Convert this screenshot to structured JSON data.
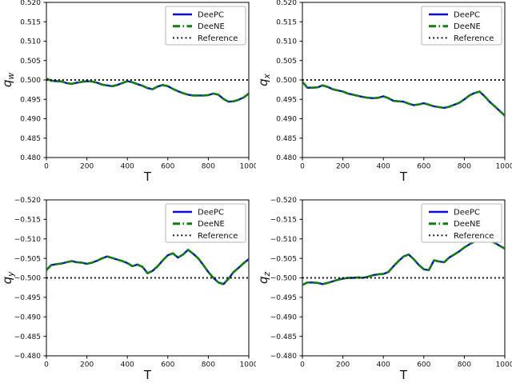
{
  "figure": {
    "background": "#ffffff",
    "spine_color": "#000000",
    "legend_border_color": "#b5b5b5"
  },
  "chart_data": [
    {
      "id": "qw",
      "type": "line",
      "xlabel": "T",
      "ylabel_base": "q",
      "ylabel_sub": "w",
      "xlim": [
        0,
        1000
      ],
      "xticks": [
        0,
        200,
        400,
        600,
        800,
        1000
      ],
      "xtick_labels": [
        "0",
        "200",
        "400",
        "600",
        "800",
        "1000"
      ],
      "ylim_top": 0.52,
      "ylim_bottom": 0.48,
      "yticks": [
        0.52,
        0.515,
        0.51,
        0.505,
        0.5,
        0.495,
        0.49,
        0.485,
        0.48
      ],
      "ytick_labels": [
        "0.520",
        "0.515",
        "0.510",
        "0.505",
        "0.500",
        "0.495",
        "0.490",
        "0.485",
        "0.480"
      ],
      "legend_position": "upper right",
      "x": [
        0,
        25,
        50,
        75,
        100,
        125,
        150,
        175,
        200,
        225,
        250,
        275,
        300,
        325,
        350,
        375,
        400,
        425,
        450,
        475,
        500,
        525,
        550,
        575,
        600,
        625,
        650,
        675,
        700,
        725,
        750,
        775,
        800,
        825,
        850,
        875,
        900,
        925,
        950,
        975,
        1000
      ],
      "series": [
        {
          "name": "DeePC",
          "color": "#0b0be0",
          "style": "solid",
          "values": [
            0.5003,
            0.4998,
            0.4997,
            0.4996,
            0.4992,
            0.499,
            0.4993,
            0.4995,
            0.4997,
            0.4996,
            0.4993,
            0.4988,
            0.4986,
            0.4984,
            0.4987,
            0.4992,
            0.4997,
            0.4994,
            0.4989,
            0.4985,
            0.4979,
            0.4976,
            0.4983,
            0.4987,
            0.4984,
            0.4977,
            0.4971,
            0.4966,
            0.4962,
            0.496,
            0.496,
            0.496,
            0.4961,
            0.4965,
            0.4962,
            0.4951,
            0.4944,
            0.4945,
            0.4949,
            0.4955,
            0.4965
          ]
        },
        {
          "name": "DeeNE",
          "color": "#0e7f0e",
          "style": "dashed",
          "values": [
            0.5003,
            0.4998,
            0.4997,
            0.4996,
            0.4992,
            0.499,
            0.4993,
            0.4995,
            0.4997,
            0.4996,
            0.4993,
            0.4988,
            0.4986,
            0.4984,
            0.4987,
            0.4992,
            0.4997,
            0.4994,
            0.4989,
            0.4985,
            0.4979,
            0.4976,
            0.4983,
            0.4987,
            0.4984,
            0.4977,
            0.4971,
            0.4966,
            0.4962,
            0.496,
            0.496,
            0.496,
            0.4961,
            0.4965,
            0.4962,
            0.4951,
            0.4944,
            0.4945,
            0.4949,
            0.4955,
            0.4965
          ]
        },
        {
          "name": "Reference",
          "color": "#000000",
          "style": "dotted",
          "constant": 0.5
        }
      ]
    },
    {
      "id": "qx",
      "type": "line",
      "xlabel": "T",
      "ylabel_base": "q",
      "ylabel_sub": "x",
      "xlim": [
        0,
        1000
      ],
      "xticks": [
        0,
        200,
        400,
        600,
        800,
        1000
      ],
      "xtick_labels": [
        "0",
        "200",
        "400",
        "600",
        "800",
        "1000"
      ],
      "ylim_top": 0.52,
      "ylim_bottom": 0.48,
      "yticks": [
        0.52,
        0.515,
        0.51,
        0.505,
        0.5,
        0.495,
        0.49,
        0.485,
        0.48
      ],
      "ytick_labels": [
        "0.520",
        "0.515",
        "0.510",
        "0.505",
        "0.500",
        "0.495",
        "0.490",
        "0.485",
        "0.480"
      ],
      "legend_position": "upper right",
      "x": [
        0,
        25,
        50,
        75,
        100,
        125,
        150,
        175,
        200,
        225,
        250,
        275,
        300,
        325,
        350,
        375,
        400,
        425,
        450,
        475,
        500,
        525,
        550,
        575,
        600,
        625,
        650,
        675,
        700,
        725,
        750,
        775,
        800,
        825,
        850,
        875,
        900,
        925,
        950,
        975,
        1000
      ],
      "series": [
        {
          "name": "DeePC",
          "color": "#0b0be0",
          "style": "solid",
          "values": [
            0.4995,
            0.498,
            0.498,
            0.4981,
            0.4986,
            0.4982,
            0.4976,
            0.4973,
            0.497,
            0.4965,
            0.4962,
            0.4959,
            0.4956,
            0.4954,
            0.4953,
            0.4954,
            0.4958,
            0.4953,
            0.4946,
            0.4945,
            0.4944,
            0.4939,
            0.4935,
            0.4937,
            0.494,
            0.4936,
            0.4932,
            0.493,
            0.4928,
            0.4931,
            0.4936,
            0.4941,
            0.495,
            0.496,
            0.4966,
            0.497,
            0.4958,
            0.4944,
            0.4932,
            0.492,
            0.4908
          ]
        },
        {
          "name": "DeeNE",
          "color": "#0e7f0e",
          "style": "dashed",
          "values": [
            0.4995,
            0.498,
            0.498,
            0.4981,
            0.4986,
            0.4982,
            0.4976,
            0.4973,
            0.497,
            0.4965,
            0.4962,
            0.4959,
            0.4956,
            0.4954,
            0.4953,
            0.4954,
            0.4958,
            0.4953,
            0.4946,
            0.4945,
            0.4944,
            0.4939,
            0.4935,
            0.4937,
            0.494,
            0.4936,
            0.4932,
            0.493,
            0.4928,
            0.4931,
            0.4936,
            0.4941,
            0.495,
            0.496,
            0.4966,
            0.497,
            0.4958,
            0.4944,
            0.4932,
            0.492,
            0.4908
          ]
        },
        {
          "name": "Reference",
          "color": "#000000",
          "style": "dotted",
          "constant": 0.5
        }
      ]
    },
    {
      "id": "qy",
      "type": "line",
      "xlabel": "T",
      "ylabel_base": "q",
      "ylabel_sub": "y",
      "xlim": [
        0,
        1000
      ],
      "xticks": [
        0,
        200,
        400,
        600,
        800,
        1000
      ],
      "xtick_labels": [
        "0",
        "200",
        "400",
        "600",
        "800",
        "1000"
      ],
      "ylim_top": -0.52,
      "ylim_bottom": -0.48,
      "yticks": [
        -0.52,
        -0.515,
        -0.51,
        -0.505,
        -0.5,
        -0.495,
        -0.49,
        -0.485,
        -0.48
      ],
      "ytick_labels": [
        "−0.520",
        "−0.515",
        "−0.510",
        "−0.505",
        "−0.500",
        "−0.495",
        "−0.490",
        "−0.485",
        "−0.480"
      ],
      "legend_position": "upper right",
      "x": [
        0,
        25,
        50,
        75,
        100,
        125,
        150,
        175,
        200,
        225,
        250,
        275,
        300,
        325,
        350,
        375,
        400,
        425,
        450,
        475,
        500,
        525,
        550,
        575,
        600,
        625,
        650,
        675,
        700,
        725,
        750,
        775,
        800,
        825,
        850,
        875,
        900,
        925,
        950,
        975,
        1000
      ],
      "series": [
        {
          "name": "DeePC",
          "color": "#0b0be0",
          "style": "solid",
          "values": [
            -0.502,
            -0.5033,
            -0.5035,
            -0.5037,
            -0.504,
            -0.5043,
            -0.504,
            -0.5039,
            -0.5036,
            -0.5039,
            -0.5044,
            -0.505,
            -0.5055,
            -0.5051,
            -0.5047,
            -0.5043,
            -0.5038,
            -0.503,
            -0.5034,
            -0.5028,
            -0.5012,
            -0.5018,
            -0.503,
            -0.5045,
            -0.5058,
            -0.5063,
            -0.5052,
            -0.506,
            -0.5072,
            -0.5062,
            -0.505,
            -0.5033,
            -0.5015,
            -0.5,
            -0.4988,
            -0.4984,
            -0.4998,
            -0.5015,
            -0.5026,
            -0.5038,
            -0.5048
          ]
        },
        {
          "name": "DeeNE",
          "color": "#0e7f0e",
          "style": "dashed",
          "values": [
            -0.502,
            -0.5033,
            -0.5035,
            -0.5037,
            -0.504,
            -0.5043,
            -0.504,
            -0.5039,
            -0.5036,
            -0.5039,
            -0.5044,
            -0.505,
            -0.5055,
            -0.5051,
            -0.5047,
            -0.5043,
            -0.5038,
            -0.503,
            -0.5034,
            -0.5028,
            -0.5012,
            -0.5018,
            -0.503,
            -0.5045,
            -0.5058,
            -0.5063,
            -0.5052,
            -0.506,
            -0.5072,
            -0.5062,
            -0.505,
            -0.5033,
            -0.5015,
            -0.5,
            -0.4988,
            -0.4984,
            -0.4998,
            -0.5015,
            -0.5026,
            -0.5038,
            -0.5048
          ]
        },
        {
          "name": "Reference",
          "color": "#000000",
          "style": "dotted",
          "constant": -0.5
        }
      ]
    },
    {
      "id": "qz",
      "type": "line",
      "xlabel": "T",
      "ylabel_base": "q",
      "ylabel_sub": "z",
      "xlim": [
        0,
        1000
      ],
      "xticks": [
        0,
        200,
        400,
        600,
        800,
        1000
      ],
      "xtick_labels": [
        "0",
        "200",
        "400",
        "600",
        "800",
        "1000"
      ],
      "ylim_top": -0.52,
      "ylim_bottom": -0.48,
      "yticks": [
        -0.52,
        -0.515,
        -0.51,
        -0.505,
        -0.5,
        -0.495,
        -0.49,
        -0.485,
        -0.48
      ],
      "ytick_labels": [
        "−0.520",
        "−0.515",
        "−0.510",
        "−0.505",
        "−0.500",
        "−0.495",
        "−0.490",
        "−0.485",
        "−0.480"
      ],
      "legend_position": "upper right",
      "x": [
        0,
        25,
        50,
        75,
        100,
        125,
        150,
        175,
        200,
        225,
        250,
        275,
        300,
        325,
        350,
        375,
        400,
        425,
        450,
        475,
        500,
        525,
        550,
        575,
        600,
        625,
        650,
        675,
        700,
        725,
        750,
        775,
        800,
        825,
        850,
        875,
        900,
        925,
        950,
        975,
        1000
      ],
      "series": [
        {
          "name": "DeePC",
          "color": "#0b0be0",
          "style": "solid",
          "values": [
            -0.4982,
            -0.4988,
            -0.4988,
            -0.4987,
            -0.4984,
            -0.4987,
            -0.4991,
            -0.4995,
            -0.4998,
            -0.5,
            -0.5,
            -0.5001,
            -0.5,
            -0.5003,
            -0.5007,
            -0.5009,
            -0.501,
            -0.5015,
            -0.503,
            -0.5043,
            -0.5055,
            -0.506,
            -0.5048,
            -0.5033,
            -0.5022,
            -0.502,
            -0.5045,
            -0.5042,
            -0.504,
            -0.5052,
            -0.506,
            -0.5068,
            -0.5078,
            -0.5086,
            -0.5093,
            -0.5098,
            -0.51,
            -0.5096,
            -0.509,
            -0.5082,
            -0.5075
          ]
        },
        {
          "name": "DeeNE",
          "color": "#0e7f0e",
          "style": "dashed",
          "values": [
            -0.4982,
            -0.4988,
            -0.4988,
            -0.4987,
            -0.4984,
            -0.4987,
            -0.4991,
            -0.4995,
            -0.4998,
            -0.5,
            -0.5,
            -0.5001,
            -0.5,
            -0.5003,
            -0.5007,
            -0.5009,
            -0.501,
            -0.5015,
            -0.503,
            -0.5043,
            -0.5055,
            -0.506,
            -0.5048,
            -0.5033,
            -0.5022,
            -0.502,
            -0.5045,
            -0.5042,
            -0.504,
            -0.5052,
            -0.506,
            -0.5068,
            -0.5078,
            -0.5086,
            -0.5093,
            -0.5098,
            -0.51,
            -0.5096,
            -0.509,
            -0.5082,
            -0.5075
          ]
        },
        {
          "name": "Reference",
          "color": "#000000",
          "style": "dotted",
          "constant": -0.5
        }
      ]
    }
  ]
}
